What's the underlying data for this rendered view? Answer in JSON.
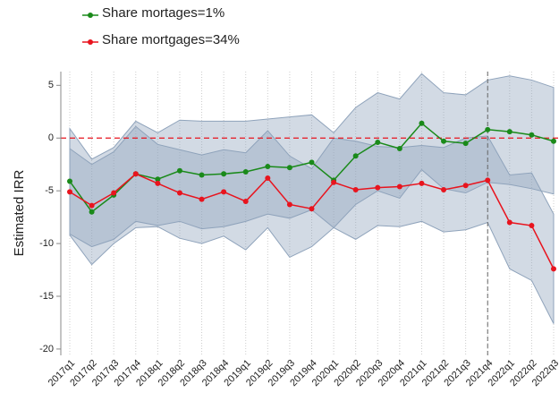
{
  "chart_data": {
    "type": "line",
    "y_label": "Estimated IRR",
    "categories": [
      "2017q1",
      "2017q2",
      "2017q3",
      "2017q4",
      "2018q1",
      "2018q2",
      "2018q3",
      "2018q4",
      "2019q1",
      "2019q2",
      "2019q3",
      "2019q4",
      "2020q1",
      "2020q2",
      "2020q3",
      "2020q4",
      "2021q1",
      "2021q2",
      "2021q3",
      "2021q4",
      "2022q1",
      "2022q2",
      "2022q3"
    ],
    "series": [
      {
        "name": "Share mortages=1%",
        "color": "#1a8a1a",
        "band_color": "#8fa3bb",
        "values": [
          -4.1,
          -7.0,
          -5.4,
          -3.4,
          -3.9,
          -3.1,
          -3.5,
          -3.4,
          -3.2,
          -2.7,
          -2.8,
          -2.3,
          -4.0,
          -1.7,
          -0.4,
          -1.0,
          1.4,
          -0.3,
          -0.5,
          0.8,
          0.6,
          0.3,
          -0.3
        ],
        "ci_upper": [
          0.9,
          -2.0,
          -0.9,
          1.6,
          0.5,
          1.7,
          1.6,
          1.6,
          1.6,
          1.8,
          2.0,
          2.2,
          0.5,
          2.9,
          4.3,
          3.7,
          6.1,
          4.3,
          4.1,
          5.5,
          5.9,
          5.5,
          4.8
        ],
        "ci_lower": [
          -9.1,
          -10.3,
          -9.6,
          -7.9,
          -8.3,
          -7.9,
          -8.6,
          -8.4,
          -7.9,
          -7.2,
          -7.6,
          -6.8,
          -8.5,
          -6.3,
          -5.0,
          -5.7,
          -3.0,
          -4.8,
          -5.2,
          -4.2,
          -4.4,
          -4.8,
          -5.3
        ]
      },
      {
        "name": "Share mortgages=34%",
        "color": "#e8141e",
        "band_color": "#8fa3bb",
        "values": [
          -5.1,
          -6.4,
          -5.2,
          -3.4,
          -4.3,
          -5.2,
          -5.8,
          -5.1,
          -6.0,
          -3.8,
          -6.3,
          -6.7,
          -4.2,
          -4.9,
          -4.7,
          -4.6,
          -4.3,
          -4.9,
          -4.5,
          -4.0,
          -8.0,
          -8.3,
          -12.4
        ],
        "ci_upper": [
          -1.0,
          -2.5,
          -1.3,
          1.1,
          -0.6,
          -1.1,
          -1.6,
          -1.1,
          -1.4,
          0.7,
          -1.7,
          -2.9,
          0.0,
          -0.3,
          -0.8,
          -0.9,
          -0.7,
          -0.9,
          0.0,
          0.2,
          -3.5,
          -3.3,
          -7.2
        ],
        "ci_lower": [
          -9.2,
          -12.0,
          -10.0,
          -8.5,
          -8.4,
          -9.5,
          -10.0,
          -9.3,
          -10.6,
          -8.5,
          -11.3,
          -10.3,
          -8.5,
          -9.6,
          -8.3,
          -8.4,
          -7.9,
          -8.9,
          -8.7,
          -8.0,
          -12.4,
          -13.5,
          -17.6
        ]
      }
    ],
    "ylim": [
      -20.6,
      6.3
    ],
    "yticks": [
      -20,
      -15,
      -10,
      -5,
      0,
      5
    ],
    "hline": {
      "value": 0,
      "color": "#e8141e"
    },
    "vline": "2021q4",
    "grid": true
  }
}
